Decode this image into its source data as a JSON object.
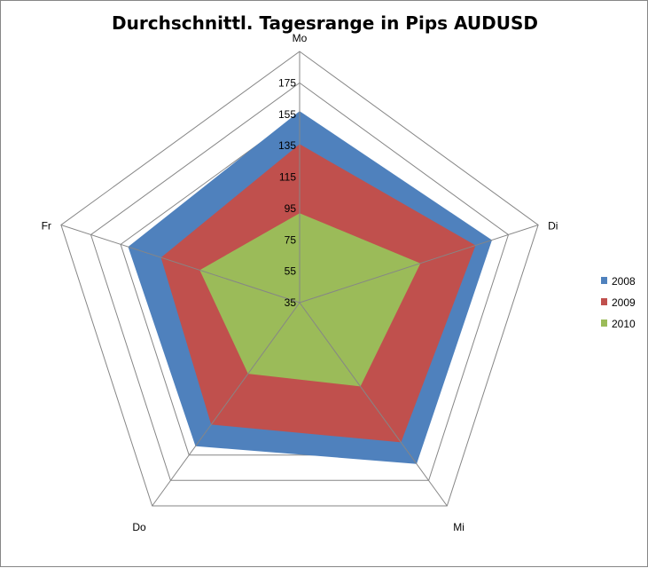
{
  "chart_data": {
    "type": "radar",
    "title": "Durchschnittl. Tagesrange in Pips AUDUSD",
    "categories": [
      "Mo",
      "Di",
      "Mi",
      "Do",
      "Fr"
    ],
    "r_ticks": [
      35,
      55,
      75,
      95,
      115,
      135,
      155,
      175
    ],
    "rlim": [
      35,
      195
    ],
    "series": [
      {
        "name": "2008",
        "color": "#4F81BD",
        "values": [
          157,
          164,
          162,
          148,
          150
        ]
      },
      {
        "name": "2009",
        "color": "#C0504D",
        "values": [
          136,
          153,
          145,
          131,
          128
        ]
      },
      {
        "name": "2010",
        "color": "#9BBB59",
        "values": [
          92,
          116,
          101,
          91,
          102
        ]
      }
    ],
    "legend": "right",
    "grid": true
  }
}
